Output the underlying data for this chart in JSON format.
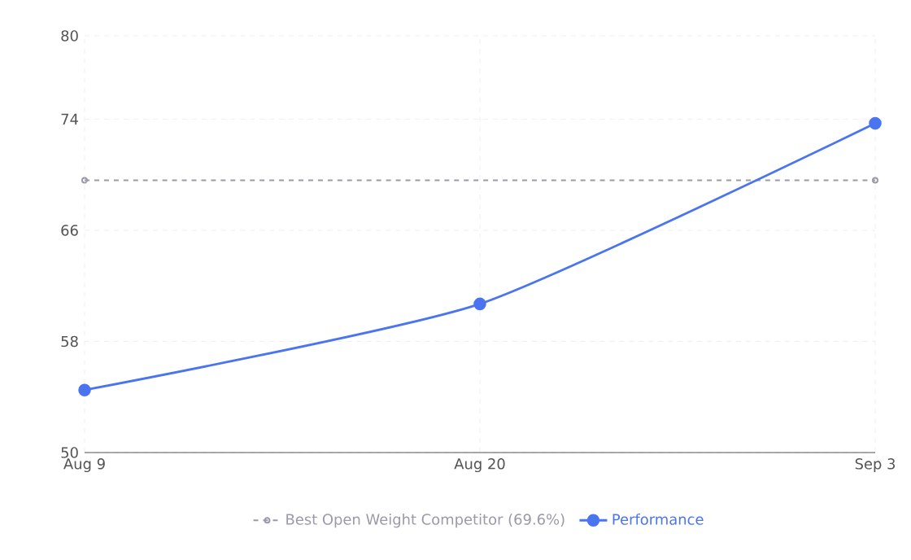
{
  "chart_data": {
    "type": "line",
    "categories": [
      "Aug 9",
      "Aug 20",
      "Sep 3"
    ],
    "series": [
      {
        "name": "Performance",
        "color": "#4a74f0",
        "values": [
          54.5,
          60.7,
          73.7
        ]
      }
    ],
    "ylim": [
      50,
      80
    ],
    "yticks": [
      50,
      58,
      66,
      74,
      80
    ],
    "grid": true,
    "legend": "bottom",
    "marker": "circle",
    "line_style": "solid",
    "ref_lines": [
      {
        "axis": "y",
        "value": 69.6,
        "label": "Best Open Weight Competitor (69.6%)",
        "color": "#9a9aa8",
        "line_style": "dashed"
      }
    ]
  }
}
